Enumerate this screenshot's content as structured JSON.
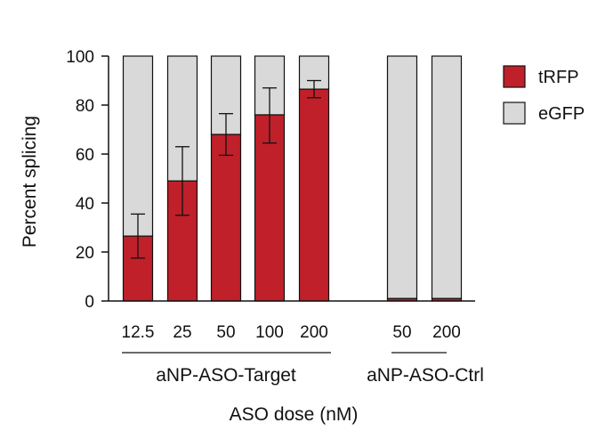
{
  "chart_data": {
    "type": "bar",
    "stacked": true,
    "ylabel": "Percent splicing",
    "xlabel": "ASO dose (nM)",
    "ylim": [
      0,
      100
    ],
    "yticks": [
      0,
      20,
      40,
      60,
      80,
      100
    ],
    "groups": [
      {
        "name": "aNP-ASO-Target",
        "categories": [
          "12.5",
          "25",
          "50",
          "100",
          "200"
        ]
      },
      {
        "name": "aNP-ASO-Ctrl",
        "categories": [
          "50",
          "200"
        ]
      }
    ],
    "categories": [
      "12.5",
      "25",
      "50",
      "100",
      "200",
      "50",
      "200"
    ],
    "series": [
      {
        "name": "tRFP",
        "color": "#c0202a",
        "values": [
          26.5,
          49,
          68,
          76,
          86.5,
          1,
          1
        ]
      },
      {
        "name": "eGFP",
        "color": "#d9d9d9",
        "values": [
          73.5,
          51,
          32,
          24,
          13.5,
          99,
          99
        ]
      }
    ],
    "error_bars": {
      "series": "tRFP",
      "lower": [
        17.5,
        35,
        59.5,
        64.5,
        83
      ],
      "upper": [
        35.5,
        63,
        76.5,
        87,
        90
      ]
    },
    "legend": {
      "position": "right",
      "entries": [
        "tRFP",
        "eGFP"
      ]
    }
  }
}
